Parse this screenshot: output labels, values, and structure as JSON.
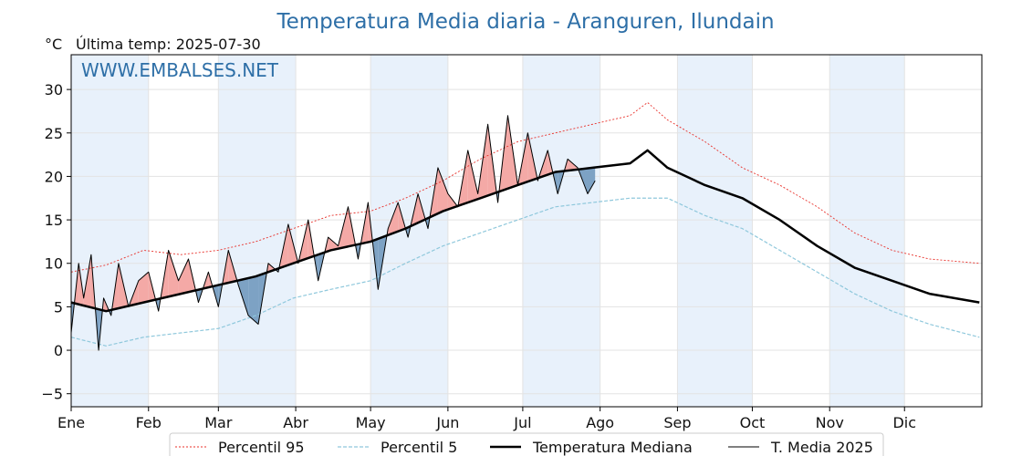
{
  "chart_data": {
    "type": "line",
    "title": "Temperatura Media diaria - Aranguren, Ilundain",
    "unit_label": "°C",
    "last_temp_label": "Última temp: 2025-07-30",
    "watermark": "WWW.EMBALSES.NET",
    "ylim": [
      -6.5,
      34
    ],
    "y_ticks": [
      -5,
      0,
      5,
      10,
      15,
      20,
      25,
      30
    ],
    "x_ticks": [
      {
        "label": "Ene",
        "day": 1
      },
      {
        "label": "Feb",
        "day": 32
      },
      {
        "label": "Mar",
        "day": 60
      },
      {
        "label": "Abr",
        "day": 91
      },
      {
        "label": "May",
        "day": 121
      },
      {
        "label": "Jun",
        "day": 152
      },
      {
        "label": "Jul",
        "day": 182
      },
      {
        "label": "Ago",
        "day": 213
      },
      {
        "label": "Sep",
        "day": 244
      },
      {
        "label": "Oct",
        "day": 274
      },
      {
        "label": "Nov",
        "day": 305
      },
      {
        "label": "Dic",
        "day": 335
      }
    ],
    "grid": true,
    "legend_position": "bottom",
    "colors": {
      "p95": "#e8302a",
      "p5": "#8fc8dc",
      "median": "#000000",
      "current": "#000000",
      "above_fill": "#f4a9a6",
      "below_fill": "#7da2c4",
      "title": "#2e6fa7",
      "band": "#e8f1fb"
    },
    "series": [
      {
        "name": "Percentil 95",
        "key": "p95",
        "x": [
          1,
          15,
          30,
          45,
          60,
          75,
          90,
          105,
          121,
          135,
          150,
          165,
          180,
          195,
          210,
          225,
          232,
          240,
          255,
          270,
          285,
          300,
          315,
          330,
          345,
          365
        ],
        "values": [
          9.0,
          9.8,
          11.5,
          11.0,
          11.5,
          12.5,
          14.0,
          15.5,
          16.0,
          17.5,
          19.5,
          22.0,
          24.0,
          25.0,
          26.0,
          27.0,
          28.5,
          26.5,
          24.0,
          21.0,
          19.0,
          16.5,
          13.5,
          11.5,
          10.5,
          10.0
        ]
      },
      {
        "name": "Percentil 5",
        "key": "p5",
        "x": [
          1,
          15,
          30,
          45,
          60,
          75,
          90,
          105,
          121,
          135,
          150,
          165,
          180,
          195,
          210,
          225,
          240,
          255,
          270,
          285,
          300,
          315,
          330,
          345,
          365
        ],
        "values": [
          1.5,
          0.5,
          1.5,
          2.0,
          2.5,
          4.0,
          6.0,
          7.0,
          8.0,
          10.0,
          12.0,
          13.5,
          15.0,
          16.5,
          17.0,
          17.5,
          17.5,
          15.5,
          14.0,
          11.5,
          9.0,
          6.5,
          4.5,
          3.0,
          1.5
        ]
      },
      {
        "name": "Temperatura Mediana",
        "key": "median",
        "x": [
          1,
          15,
          30,
          45,
          60,
          75,
          90,
          105,
          121,
          135,
          150,
          165,
          180,
          195,
          210,
          225,
          232,
          240,
          255,
          270,
          285,
          300,
          315,
          330,
          345,
          365
        ],
        "values": [
          5.5,
          4.5,
          5.5,
          6.5,
          7.5,
          8.5,
          10.0,
          11.5,
          12.5,
          14.0,
          16.0,
          17.5,
          19.0,
          20.5,
          21.0,
          21.5,
          23.0,
          21.0,
          19.0,
          17.5,
          15.0,
          12.0,
          9.5,
          8.0,
          6.5,
          5.5
        ]
      },
      {
        "name": "T. Media 2025",
        "key": "current",
        "x": [
          1,
          4,
          6,
          9,
          12,
          14,
          17,
          20,
          24,
          28,
          32,
          36,
          40,
          44,
          48,
          52,
          56,
          60,
          64,
          68,
          72,
          76,
          80,
          84,
          88,
          92,
          96,
          100,
          104,
          108,
          112,
          116,
          120,
          124,
          128,
          132,
          136,
          140,
          144,
          148,
          152,
          156,
          160,
          164,
          168,
          172,
          176,
          180,
          184,
          188,
          192,
          196,
          200,
          204,
          208,
          211
        ],
        "values": [
          2.0,
          10.0,
          6.0,
          11.0,
          0.0,
          6.0,
          4.0,
          10.0,
          5.0,
          8.0,
          9.0,
          4.5,
          11.5,
          8.0,
          10.5,
          5.5,
          9.0,
          5.0,
          11.5,
          7.5,
          4.0,
          3.0,
          10.0,
          9.0,
          14.5,
          10.0,
          15.0,
          8.0,
          13.0,
          12.0,
          16.5,
          10.5,
          17.0,
          7.0,
          14.0,
          17.0,
          13.0,
          18.0,
          14.0,
          21.0,
          18.0,
          16.5,
          23.0,
          18.0,
          26.0,
          17.0,
          27.0,
          19.0,
          25.0,
          19.5,
          23.0,
          18.0,
          22.0,
          21.0,
          18.0,
          19.5
        ]
      }
    ]
  }
}
